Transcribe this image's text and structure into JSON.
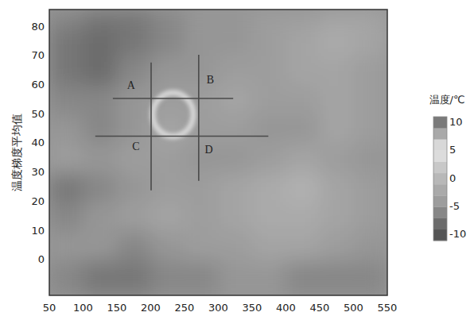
{
  "chart_data": {
    "type": "heatmap",
    "ylabel": "温度梯度平均值",
    "xlim": [
      50,
      550
    ],
    "xticks": [
      50,
      100,
      150,
      200,
      250,
      300,
      350,
      400,
      450,
      500,
      550
    ],
    "ylim": [
      -12,
      86
    ],
    "yticks": [
      0,
      10,
      20,
      30,
      40,
      50,
      60,
      70,
      80
    ],
    "grid": false,
    "x_edges": [
      50,
      100,
      150,
      200,
      250,
      300,
      350,
      400,
      450,
      500,
      550
    ],
    "y_edges": [
      -12,
      0,
      10,
      20,
      30,
      40,
      50,
      60,
      70,
      80,
      86
    ],
    "cells": [
      [
        -6,
        -7,
        -7,
        -6,
        -6,
        -5,
        -5,
        -6,
        -6,
        -6
      ],
      [
        -5,
        -5,
        -6,
        -5,
        -4,
        -4,
        -3,
        -3,
        -4,
        -5
      ],
      [
        -6,
        -5,
        -4,
        -3,
        -4,
        -3,
        -2,
        -2,
        -3,
        -4
      ],
      [
        -7,
        -6,
        -5,
        -4,
        -4,
        -3,
        -2,
        -1,
        -3,
        -4
      ],
      [
        -4,
        -5,
        -4,
        -4,
        -5,
        -5,
        -4,
        -3,
        -4,
        -5
      ],
      [
        -5,
        -6,
        -5,
        -3,
        -4,
        -4,
        -5,
        -5,
        -3,
        -4
      ],
      [
        -6,
        -6,
        -5,
        -4,
        -4,
        -3,
        -4,
        -4,
        -3,
        -4
      ],
      [
        -7,
        -8,
        -6,
        -5,
        -5,
        -4,
        -4,
        -3,
        -3,
        -4
      ],
      [
        -7,
        -8,
        -7,
        -6,
        -5,
        -5,
        -4,
        -3,
        -2,
        -3
      ],
      [
        -6,
        -7,
        -7,
        -6,
        -5,
        -5,
        -4,
        -4,
        -3,
        -3
      ]
    ],
    "ring": {
      "x": 233,
      "y": 50,
      "rx": 30,
      "ry": 7.5,
      "value": 6
    },
    "lines": [
      {
        "x": [
          144,
          322
        ],
        "y": [
          55.5,
          55.5
        ]
      },
      {
        "x": [
          118,
          374
        ],
        "y": [
          42.6,
          42.6
        ]
      },
      {
        "x": [
          200.6,
          200.6
        ],
        "y": [
          67.8,
          24
        ]
      },
      {
        "x": [
          271,
          271
        ],
        "y": [
          70.5,
          27.3
        ]
      }
    ],
    "annotations": [
      {
        "text": "A",
        "x": 171,
        "y": 59.6
      },
      {
        "text": "B",
        "x": 288,
        "y": 61.5
      },
      {
        "text": "C",
        "x": 178,
        "y": 38.8
      },
      {
        "text": "D",
        "x": 286,
        "y": 37.7
      }
    ],
    "colorbar": {
      "label": "温度/℃",
      "range": [
        -11,
        11
      ],
      "ticks": [
        10,
        5,
        0,
        -5,
        -10
      ]
    }
  }
}
